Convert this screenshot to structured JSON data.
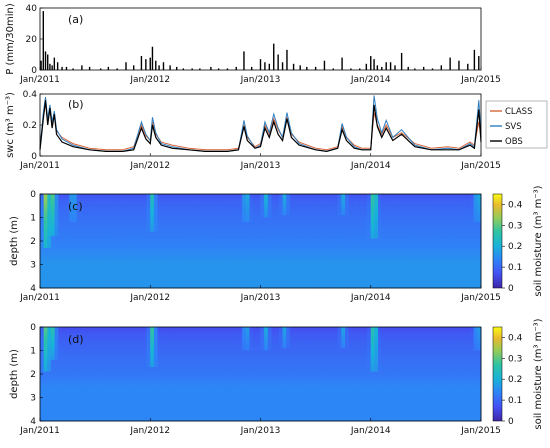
{
  "chart_data": [
    {
      "panel_tag": "(a)",
      "type": "bar",
      "ylabel": "P (mm/30min)",
      "ylim": [
        0,
        40
      ],
      "yticks": [
        0,
        20,
        40
      ],
      "xlim": [
        2011.0,
        2015.0
      ],
      "xticks": [
        {
          "value": 2011.0,
          "label": "Jan/2011"
        },
        {
          "value": 2012.0,
          "label": "Jan/2012"
        },
        {
          "value": 2013.0,
          "label": "Jan/2013"
        },
        {
          "value": 2014.0,
          "label": "Jan/2014"
        },
        {
          "value": 2015.0,
          "label": "Jan/2015"
        }
      ],
      "x": [
        2011.01,
        2011.03,
        2011.05,
        2011.07,
        2011.09,
        2011.11,
        2011.13,
        2011.16,
        2011.2,
        2011.24,
        2011.3,
        2011.38,
        2011.45,
        2011.55,
        2011.62,
        2011.7,
        2011.78,
        2011.85,
        2011.92,
        2011.96,
        2012.0,
        2012.02,
        2012.05,
        2012.08,
        2012.12,
        2012.18,
        2012.24,
        2012.3,
        2012.38,
        2012.45,
        2012.55,
        2012.62,
        2012.7,
        2012.78,
        2012.85,
        2012.92,
        2013.0,
        2013.04,
        2013.08,
        2013.12,
        2013.16,
        2013.2,
        2013.24,
        2013.3,
        2013.36,
        2013.42,
        2013.5,
        2013.58,
        2013.66,
        2013.74,
        2013.82,
        2013.9,
        2013.96,
        2014.0,
        2014.03,
        2014.06,
        2014.1,
        2014.14,
        2014.18,
        2014.22,
        2014.28,
        2014.34,
        2014.4,
        2014.48,
        2014.56,
        2014.64,
        2014.72,
        2014.8,
        2014.88,
        2014.94,
        2014.98
      ],
      "values": [
        6,
        38,
        12,
        10,
        4,
        3,
        8,
        5,
        2,
        2,
        1,
        3,
        2,
        1,
        2,
        1,
        5,
        3,
        9,
        7,
        8,
        15,
        6,
        3,
        5,
        3,
        2,
        1,
        1,
        1,
        2,
        1,
        1,
        2,
        12,
        2,
        7,
        5,
        4,
        17,
        10,
        5,
        13,
        4,
        3,
        2,
        2,
        6,
        1,
        8,
        1,
        1,
        4,
        9,
        7,
        3,
        2,
        5,
        5,
        3,
        11,
        2,
        1,
        2,
        1,
        3,
        8,
        6,
        4,
        13,
        9
      ]
    },
    {
      "panel_tag": "(b)",
      "type": "line",
      "ylabel": "swc (m³ m⁻³)",
      "ylim": [
        0,
        0.4
      ],
      "yticks": [
        0,
        0.2,
        0.4
      ],
      "xlim": [
        2011.0,
        2015.0
      ],
      "legend": "right",
      "x": [
        2011.0,
        2011.03,
        2011.05,
        2011.07,
        2011.09,
        2011.11,
        2011.13,
        2011.15,
        2011.2,
        2011.3,
        2011.45,
        2011.6,
        2011.75,
        2011.85,
        2011.92,
        2011.96,
        2012.0,
        2012.02,
        2012.05,
        2012.1,
        2012.2,
        2012.35,
        2012.5,
        2012.7,
        2012.8,
        2012.85,
        2012.88,
        2012.95,
        2013.0,
        2013.04,
        2013.08,
        2013.12,
        2013.16,
        2013.2,
        2013.24,
        2013.28,
        2013.35,
        2013.5,
        2013.6,
        2013.7,
        2013.74,
        2013.78,
        2013.85,
        2013.92,
        2014.0,
        2014.03,
        2014.06,
        2014.1,
        2014.14,
        2014.2,
        2014.28,
        2014.4,
        2014.55,
        2014.7,
        2014.8,
        2014.9,
        2014.94,
        2014.98,
        2015.0
      ],
      "series": [
        {
          "name": "CLASS",
          "color": "#d9663a",
          "values": [
            0.06,
            0.25,
            0.34,
            0.22,
            0.3,
            0.2,
            0.26,
            0.16,
            0.12,
            0.08,
            0.05,
            0.04,
            0.04,
            0.06,
            0.2,
            0.13,
            0.1,
            0.22,
            0.14,
            0.09,
            0.07,
            0.05,
            0.04,
            0.04,
            0.05,
            0.2,
            0.12,
            0.06,
            0.08,
            0.2,
            0.14,
            0.24,
            0.17,
            0.12,
            0.25,
            0.14,
            0.09,
            0.05,
            0.04,
            0.06,
            0.19,
            0.12,
            0.07,
            0.05,
            0.05,
            0.28,
            0.2,
            0.14,
            0.2,
            0.12,
            0.15,
            0.08,
            0.05,
            0.06,
            0.05,
            0.09,
            0.07,
            0.22,
            0.12
          ]
        },
        {
          "name": "SVS",
          "color": "#2f7fc0",
          "values": [
            0.05,
            0.28,
            0.38,
            0.24,
            0.33,
            0.22,
            0.29,
            0.17,
            0.11,
            0.07,
            0.04,
            0.03,
            0.03,
            0.05,
            0.22,
            0.14,
            0.1,
            0.25,
            0.15,
            0.08,
            0.06,
            0.04,
            0.03,
            0.03,
            0.04,
            0.23,
            0.13,
            0.05,
            0.07,
            0.22,
            0.15,
            0.27,
            0.18,
            0.12,
            0.28,
            0.15,
            0.08,
            0.04,
            0.03,
            0.05,
            0.21,
            0.12,
            0.06,
            0.04,
            0.04,
            0.39,
            0.24,
            0.15,
            0.23,
            0.12,
            0.17,
            0.07,
            0.04,
            0.05,
            0.04,
            0.08,
            0.06,
            0.36,
            0.14
          ]
        },
        {
          "name": "OBS",
          "color": "#000000",
          "values": [
            0.04,
            0.24,
            0.36,
            0.2,
            0.31,
            0.18,
            0.27,
            0.14,
            0.09,
            0.06,
            0.04,
            0.03,
            0.03,
            0.04,
            0.18,
            0.11,
            0.08,
            0.2,
            0.12,
            0.07,
            0.05,
            0.04,
            0.03,
            0.03,
            0.04,
            0.19,
            0.1,
            0.05,
            0.06,
            0.18,
            0.12,
            0.22,
            0.14,
            0.1,
            0.24,
            0.12,
            0.07,
            0.04,
            0.03,
            0.05,
            0.17,
            0.1,
            0.05,
            0.04,
            0.04,
            0.33,
            0.19,
            0.12,
            0.18,
            0.1,
            0.14,
            0.06,
            0.04,
            0.04,
            0.04,
            0.07,
            0.05,
            0.3,
            0.09
          ]
        }
      ]
    },
    {
      "panel_tag": "(c)",
      "type": "heatmap",
      "ylabel": "depth (m)",
      "ylim": [
        4,
        0
      ],
      "yticks": [
        0,
        1,
        2,
        3,
        4
      ],
      "xlim": [
        2011.0,
        2015.0
      ],
      "colorbar_label": "soil moisture (m³ m⁻³)",
      "colorbar_ticks": [
        0,
        0.1,
        0.2,
        0.3,
        0.4
      ],
      "colorbar_range": [
        0,
        0.45
      ],
      "depth_profile_depths": [
        0.0,
        0.3,
        0.6,
        1.0,
        1.5,
        2.0,
        2.4,
        2.7,
        3.0,
        4.0
      ],
      "depth_profile_values": [
        0.07,
        0.09,
        0.1,
        0.11,
        0.12,
        0.13,
        0.14,
        0.15,
        0.16,
        0.16
      ],
      "wet_events": [
        {
          "x": 2011.06,
          "value": 0.38,
          "max_depth": 2.3
        },
        {
          "x": 2011.12,
          "value": 0.3,
          "max_depth": 1.8
        },
        {
          "x": 2011.3,
          "value": 0.2,
          "max_depth": 1.2
        },
        {
          "x": 2012.02,
          "value": 0.25,
          "max_depth": 1.6
        },
        {
          "x": 2012.87,
          "value": 0.22,
          "max_depth": 1.2
        },
        {
          "x": 2013.05,
          "value": 0.22,
          "max_depth": 1.0
        },
        {
          "x": 2013.22,
          "value": 0.2,
          "max_depth": 0.9
        },
        {
          "x": 2013.75,
          "value": 0.2,
          "max_depth": 0.9
        },
        {
          "x": 2014.03,
          "value": 0.32,
          "max_depth": 1.9
        },
        {
          "x": 2014.97,
          "value": 0.22,
          "max_depth": 1.2
        }
      ]
    },
    {
      "panel_tag": "(d)",
      "type": "heatmap",
      "ylabel": "depth (m)",
      "ylim": [
        4,
        0
      ],
      "yticks": [
        0,
        1,
        2,
        3,
        4
      ],
      "xlim": [
        2011.0,
        2015.0
      ],
      "colorbar_label": "soil moisture (m³ m⁻³)",
      "colorbar_ticks": [
        0,
        0.1,
        0.2,
        0.3,
        0.4
      ],
      "colorbar_range": [
        0,
        0.45
      ],
      "depth_profile_depths": [
        0.0,
        0.3,
        0.6,
        1.0,
        1.5,
        2.0,
        2.3,
        2.5,
        4.0
      ],
      "depth_profile_values": [
        0.06,
        0.08,
        0.09,
        0.1,
        0.11,
        0.12,
        0.13,
        0.14,
        0.14
      ],
      "wet_events": [
        {
          "x": 2011.06,
          "value": 0.33,
          "max_depth": 1.9
        },
        {
          "x": 2011.12,
          "value": 0.26,
          "max_depth": 1.4
        },
        {
          "x": 2012.02,
          "value": 0.28,
          "max_depth": 1.7
        },
        {
          "x": 2012.87,
          "value": 0.2,
          "max_depth": 1.0
        },
        {
          "x": 2013.05,
          "value": 0.2,
          "max_depth": 1.0
        },
        {
          "x": 2013.22,
          "value": 0.19,
          "max_depth": 0.9
        },
        {
          "x": 2013.75,
          "value": 0.19,
          "max_depth": 0.9
        },
        {
          "x": 2014.03,
          "value": 0.3,
          "max_depth": 1.9
        },
        {
          "x": 2014.97,
          "value": 0.2,
          "max_depth": 1.0
        }
      ]
    }
  ]
}
